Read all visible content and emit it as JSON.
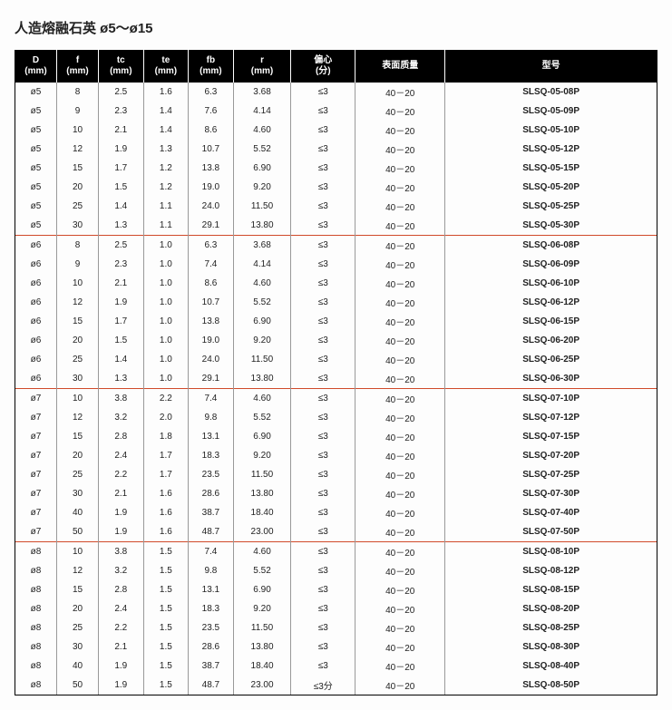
{
  "title": "人造熔融石英 ø5～ø15",
  "columns": [
    {
      "l1": "D",
      "l2": "(mm)"
    },
    {
      "l1": "f",
      "l2": "(mm)"
    },
    {
      "l1": "tc",
      "l2": "(mm)"
    },
    {
      "l1": "te",
      "l2": "(mm)"
    },
    {
      "l1": "fb",
      "l2": "(mm)"
    },
    {
      "l1": "r",
      "l2": "(mm)"
    },
    {
      "l1": "偏心",
      "l2": "(分)"
    },
    {
      "l1": "表面质量",
      "l2": ""
    },
    {
      "l1": "型号",
      "l2": ""
    }
  ],
  "groups": [
    {
      "rows": [
        {
          "d": "ø5",
          "f": "8",
          "tc": "2.5",
          "te": "1.6",
          "fb": "6.3",
          "r": "3.68",
          "ecc": "≤3",
          "sq": "40－20",
          "model": "SLSQ-05-08P"
        },
        {
          "d": "ø5",
          "f": "9",
          "tc": "2.3",
          "te": "1.4",
          "fb": "7.6",
          "r": "4.14",
          "ecc": "≤3",
          "sq": "40－20",
          "model": "SLSQ-05-09P"
        },
        {
          "d": "ø5",
          "f": "10",
          "tc": "2.1",
          "te": "1.4",
          "fb": "8.6",
          "r": "4.60",
          "ecc": "≤3",
          "sq": "40－20",
          "model": "SLSQ-05-10P"
        },
        {
          "d": "ø5",
          "f": "12",
          "tc": "1.9",
          "te": "1.3",
          "fb": "10.7",
          "r": "5.52",
          "ecc": "≤3",
          "sq": "40－20",
          "model": "SLSQ-05-12P"
        },
        {
          "d": "ø5",
          "f": "15",
          "tc": "1.7",
          "te": "1.2",
          "fb": "13.8",
          "r": "6.90",
          "ecc": "≤3",
          "sq": "40－20",
          "model": "SLSQ-05-15P"
        },
        {
          "d": "ø5",
          "f": "20",
          "tc": "1.5",
          "te": "1.2",
          "fb": "19.0",
          "r": "9.20",
          "ecc": "≤3",
          "sq": "40－20",
          "model": "SLSQ-05-20P"
        },
        {
          "d": "ø5",
          "f": "25",
          "tc": "1.4",
          "te": "1.1",
          "fb": "24.0",
          "r": "11.50",
          "ecc": "≤3",
          "sq": "40－20",
          "model": "SLSQ-05-25P"
        },
        {
          "d": "ø5",
          "f": "30",
          "tc": "1.3",
          "te": "1.1",
          "fb": "29.1",
          "r": "13.80",
          "ecc": "≤3",
          "sq": "40－20",
          "model": "SLSQ-05-30P"
        }
      ]
    },
    {
      "rows": [
        {
          "d": "ø6",
          "f": "8",
          "tc": "2.5",
          "te": "1.0",
          "fb": "6.3",
          "r": "3.68",
          "ecc": "≤3",
          "sq": "40－20",
          "model": "SLSQ-06-08P"
        },
        {
          "d": "ø6",
          "f": "9",
          "tc": "2.3",
          "te": "1.0",
          "fb": "7.4",
          "r": "4.14",
          "ecc": "≤3",
          "sq": "40－20",
          "model": "SLSQ-06-09P"
        },
        {
          "d": "ø6",
          "f": "10",
          "tc": "2.1",
          "te": "1.0",
          "fb": "8.6",
          "r": "4.60",
          "ecc": "≤3",
          "sq": "40－20",
          "model": "SLSQ-06-10P"
        },
        {
          "d": "ø6",
          "f": "12",
          "tc": "1.9",
          "te": "1.0",
          "fb": "10.7",
          "r": "5.52",
          "ecc": "≤3",
          "sq": "40－20",
          "model": "SLSQ-06-12P"
        },
        {
          "d": "ø6",
          "f": "15",
          "tc": "1.7",
          "te": "1.0",
          "fb": "13.8",
          "r": "6.90",
          "ecc": "≤3",
          "sq": "40－20",
          "model": "SLSQ-06-15P"
        },
        {
          "d": "ø6",
          "f": "20",
          "tc": "1.5",
          "te": "1.0",
          "fb": "19.0",
          "r": "9.20",
          "ecc": "≤3",
          "sq": "40－20",
          "model": "SLSQ-06-20P"
        },
        {
          "d": "ø6",
          "f": "25",
          "tc": "1.4",
          "te": "1.0",
          "fb": "24.0",
          "r": "11.50",
          "ecc": "≤3",
          "sq": "40－20",
          "model": "SLSQ-06-25P"
        },
        {
          "d": "ø6",
          "f": "30",
          "tc": "1.3",
          "te": "1.0",
          "fb": "29.1",
          "r": "13.80",
          "ecc": "≤3",
          "sq": "40－20",
          "model": "SLSQ-06-30P"
        }
      ]
    },
    {
      "rows": [
        {
          "d": "ø7",
          "f": "10",
          "tc": "3.8",
          "te": "2.2",
          "fb": "7.4",
          "r": "4.60",
          "ecc": "≤3",
          "sq": "40－20",
          "model": "SLSQ-07-10P"
        },
        {
          "d": "ø7",
          "f": "12",
          "tc": "3.2",
          "te": "2.0",
          "fb": "9.8",
          "r": "5.52",
          "ecc": "≤3",
          "sq": "40－20",
          "model": "SLSQ-07-12P"
        },
        {
          "d": "ø7",
          "f": "15",
          "tc": "2.8",
          "te": "1.8",
          "fb": "13.1",
          "r": "6.90",
          "ecc": "≤3",
          "sq": "40－20",
          "model": "SLSQ-07-15P"
        },
        {
          "d": "ø7",
          "f": "20",
          "tc": "2.4",
          "te": "1.7",
          "fb": "18.3",
          "r": "9.20",
          "ecc": "≤3",
          "sq": "40－20",
          "model": "SLSQ-07-20P"
        },
        {
          "d": "ø7",
          "f": "25",
          "tc": "2.2",
          "te": "1.7",
          "fb": "23.5",
          "r": "11.50",
          "ecc": "≤3",
          "sq": "40－20",
          "model": "SLSQ-07-25P"
        },
        {
          "d": "ø7",
          "f": "30",
          "tc": "2.1",
          "te": "1.6",
          "fb": "28.6",
          "r": "13.80",
          "ecc": "≤3",
          "sq": "40－20",
          "model": "SLSQ-07-30P"
        },
        {
          "d": "ø7",
          "f": "40",
          "tc": "1.9",
          "te": "1.6",
          "fb": "38.7",
          "r": "18.40",
          "ecc": "≤3",
          "sq": "40－20",
          "model": "SLSQ-07-40P"
        },
        {
          "d": "ø7",
          "f": "50",
          "tc": "1.9",
          "te": "1.6",
          "fb": "48.7",
          "r": "23.00",
          "ecc": "≤3",
          "sq": "40－20",
          "model": "SLSQ-07-50P"
        }
      ]
    },
    {
      "rows": [
        {
          "d": "ø8",
          "f": "10",
          "tc": "3.8",
          "te": "1.5",
          "fb": "7.4",
          "r": "4.60",
          "ecc": "≤3",
          "sq": "40－20",
          "model": "SLSQ-08-10P"
        },
        {
          "d": "ø8",
          "f": "12",
          "tc": "3.2",
          "te": "1.5",
          "fb": "9.8",
          "r": "5.52",
          "ecc": "≤3",
          "sq": "40－20",
          "model": "SLSQ-08-12P"
        },
        {
          "d": "ø8",
          "f": "15",
          "tc": "2.8",
          "te": "1.5",
          "fb": "13.1",
          "r": "6.90",
          "ecc": "≤3",
          "sq": "40－20",
          "model": "SLSQ-08-15P"
        },
        {
          "d": "ø8",
          "f": "20",
          "tc": "2.4",
          "te": "1.5",
          "fb": "18.3",
          "r": "9.20",
          "ecc": "≤3",
          "sq": "40－20",
          "model": "SLSQ-08-20P"
        },
        {
          "d": "ø8",
          "f": "25",
          "tc": "2.2",
          "te": "1.5",
          "fb": "23.5",
          "r": "11.50",
          "ecc": "≤3",
          "sq": "40－20",
          "model": "SLSQ-08-25P"
        },
        {
          "d": "ø8",
          "f": "30",
          "tc": "2.1",
          "te": "1.5",
          "fb": "28.6",
          "r": "13.80",
          "ecc": "≤3",
          "sq": "40－20",
          "model": "SLSQ-08-30P"
        },
        {
          "d": "ø8",
          "f": "40",
          "tc": "1.9",
          "te": "1.5",
          "fb": "38.7",
          "r": "18.40",
          "ecc": "≤3",
          "sq": "40－20",
          "model": "SLSQ-08-40P"
        },
        {
          "d": "ø8",
          "f": "50",
          "tc": "1.9",
          "te": "1.5",
          "fb": "48.7",
          "r": "23.00",
          "ecc": "≤3分",
          "sq": "40－20",
          "model": "SLSQ-08-50P"
        }
      ]
    }
  ]
}
